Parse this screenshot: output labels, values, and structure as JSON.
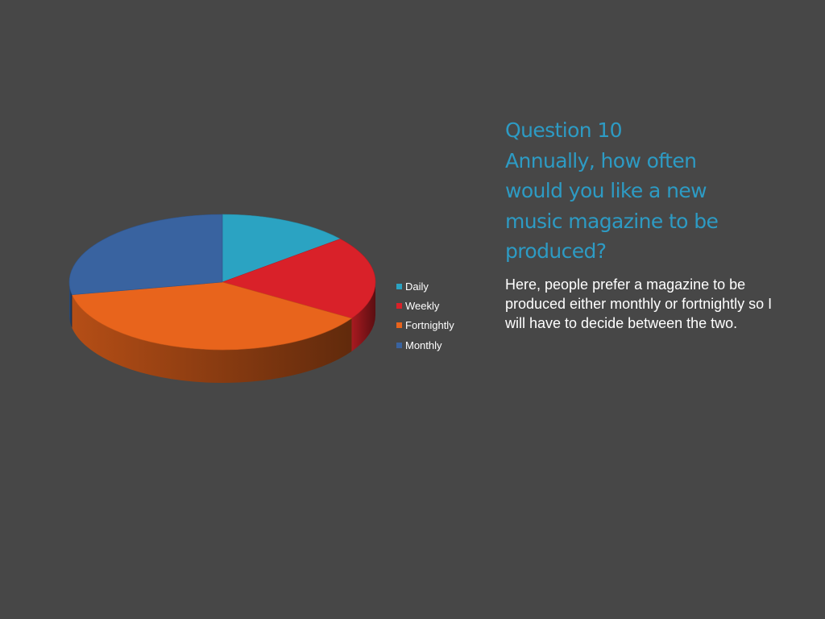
{
  "heading": {
    "lines": [
      "Question 10",
      "Annually, how often",
      "would you like a new",
      "music magazine to be",
      "produced?"
    ]
  },
  "body_text": "Here, people prefer a magazine to be produced either monthly or fortnightly so I will have to decide between the two.",
  "colors": {
    "background": "#474747",
    "heading": "#2d9bc4",
    "body_text": "#ffffff"
  },
  "chart_data": {
    "type": "pie",
    "style": "3d",
    "title": "",
    "categories": [
      "Daily",
      "Weekly",
      "Fortnightly",
      "Monthly"
    ],
    "values": [
      14,
      20,
      38,
      28
    ],
    "colors": [
      "#2ba3c2",
      "#d92129",
      "#e8641c",
      "#3963a0"
    ],
    "legend_position": "right",
    "data_labels": false
  }
}
